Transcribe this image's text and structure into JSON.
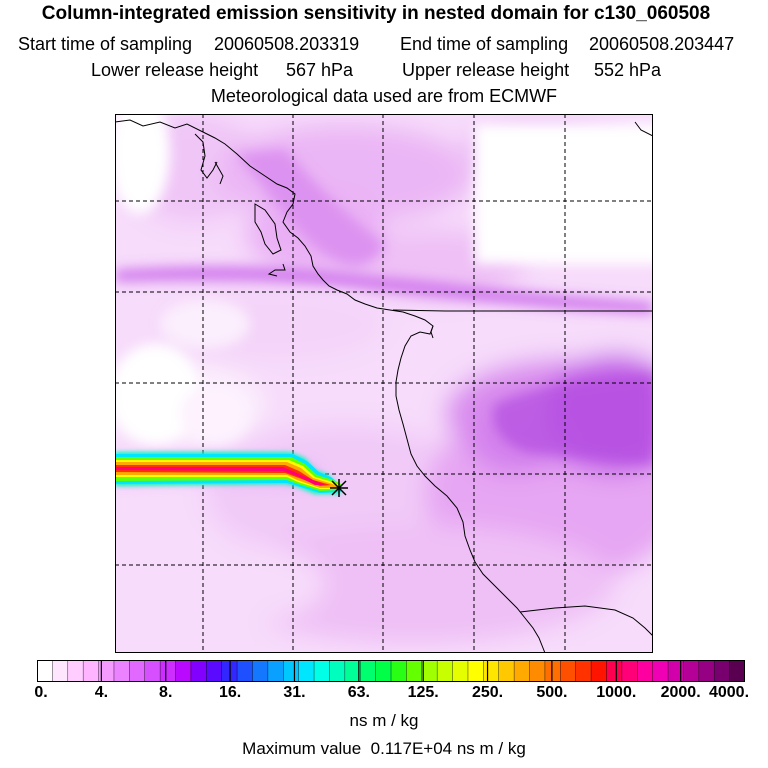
{
  "title": "Column-integrated emission sensitivity in nested domain for c130_060508",
  "sampling": {
    "start_label": "Start time of sampling",
    "start_value": "20060508.203319",
    "end_label": "End time of sampling",
    "end_value": "20060508.203447"
  },
  "release": {
    "lower_label": "Lower release height",
    "lower_value": "567 hPa",
    "upper_label": "Upper release height",
    "upper_value": "552 hPa"
  },
  "met_note": "Meteorological data used are from ECMWF",
  "colorbar": {
    "colors": [
      "#ffffff",
      "#ffe6ff",
      "#ffcdff",
      "#ffb4ff",
      "#f59bff",
      "#eb82ff",
      "#e169ff",
      "#d750ff",
      "#cd2dff",
      "#b90aff",
      "#8200ff",
      "#5a0aff",
      "#3228ff",
      "#1e50ff",
      "#1478ff",
      "#0aa0ff",
      "#00c8ff",
      "#00e6ff",
      "#00ffe6",
      "#00ffbe",
      "#00ff96",
      "#00ff6e",
      "#00ff46",
      "#28ff14",
      "#64ff00",
      "#a0ff00",
      "#c8ff00",
      "#e6ff00",
      "#ffff00",
      "#ffe600",
      "#ffc800",
      "#ffaa00",
      "#ff8c00",
      "#ff6e00",
      "#ff5000",
      "#ff3200",
      "#ff1400",
      "#ff0050",
      "#ff0078",
      "#ff00a0",
      "#f000b4",
      "#d200aa",
      "#b40096",
      "#960082",
      "#78006e",
      "#5a0050"
    ],
    "tick_labels": [
      "0.",
      "4.",
      "8.",
      "16.",
      "31.",
      "63.",
      "125.",
      "250.",
      "500.",
      "1000.",
      "2000.",
      "4000."
    ],
    "units": "ns m / kg"
  },
  "max_label": "Maximum value",
  "max_value": "0.117E+04 ns m / kg",
  "map": {
    "receptor_marker": "star-icon"
  }
}
